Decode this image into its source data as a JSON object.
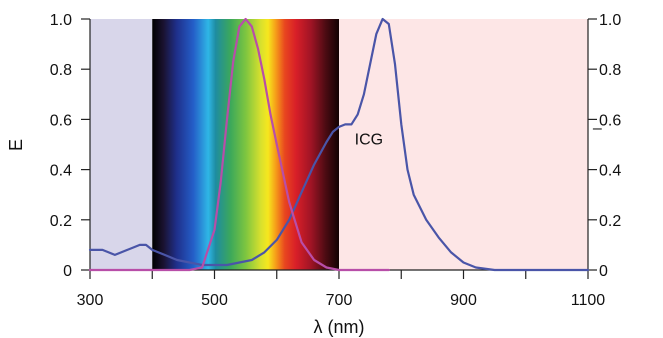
{
  "chart_data": {
    "type": "line",
    "xlabel": "λ (nm)",
    "ylabel": "E",
    "xlim": [
      300,
      1100
    ],
    "ylim": [
      0,
      1.0
    ],
    "y2lim": [
      0,
      1.0
    ],
    "x_ticks": [
      300,
      400,
      500,
      600,
      700,
      800,
      900,
      1000,
      1100
    ],
    "x_tick_labels": [
      "300",
      "",
      "500",
      "",
      "700",
      "",
      "900",
      "",
      "1100"
    ],
    "y_ticks": [
      0,
      0.2,
      0.4,
      0.6,
      0.8,
      1.0
    ],
    "y_tick_labels": [
      "0",
      "0.2",
      "0.4",
      "0.6",
      "0.8",
      "1.0"
    ],
    "y2_ticks": [
      0,
      0.2,
      0.4,
      0.6,
      0.8,
      1.0
    ],
    "y2_tick_labels": [
      "0",
      "0.2",
      "0.4",
      "0.6",
      "0.8",
      "1.0"
    ],
    "regions": [
      {
        "x": [
          300,
          400
        ],
        "color": "#d8d6ea"
      },
      {
        "x": [
          400,
          700
        ],
        "kind": "visible-spectrum"
      },
      {
        "x": [
          700,
          1100
        ],
        "color": "#fde6e6"
      }
    ],
    "series": [
      {
        "name": "ICG",
        "color": "#4a55a8",
        "x": [
          300,
          320,
          330,
          340,
          350,
          360,
          370,
          380,
          390,
          400,
          420,
          440,
          460,
          480,
          500,
          520,
          540,
          560,
          580,
          600,
          620,
          640,
          660,
          680,
          690,
          700,
          710,
          720,
          730,
          740,
          750,
          760,
          770,
          780,
          790,
          800,
          810,
          820,
          840,
          860,
          880,
          900,
          920,
          950,
          1000,
          1100
        ],
        "y": [
          0.08,
          0.08,
          0.07,
          0.06,
          0.07,
          0.08,
          0.09,
          0.1,
          0.1,
          0.08,
          0.06,
          0.04,
          0.03,
          0.02,
          0.02,
          0.02,
          0.03,
          0.04,
          0.07,
          0.12,
          0.2,
          0.31,
          0.42,
          0.51,
          0.55,
          0.57,
          0.58,
          0.58,
          0.62,
          0.7,
          0.82,
          0.94,
          1.0,
          0.98,
          0.82,
          0.58,
          0.4,
          0.3,
          0.2,
          0.13,
          0.07,
          0.03,
          0.01,
          0.0,
          0.0,
          0.0
        ]
      },
      {
        "color": "#b84ea8",
        "x": [
          300,
          460,
          480,
          500,
          510,
          520,
          530,
          540,
          550,
          560,
          570,
          580,
          590,
          600,
          620,
          640,
          660,
          680,
          700,
          780
        ],
        "y": [
          0.0,
          0.0,
          0.01,
          0.16,
          0.35,
          0.6,
          0.83,
          0.97,
          1.0,
          0.97,
          0.88,
          0.76,
          0.62,
          0.5,
          0.27,
          0.11,
          0.04,
          0.01,
          0.0,
          0.0
        ]
      }
    ],
    "annotations": [
      {
        "text": "ICG",
        "x": 748,
        "y": 0.5
      },
      {
        "text": "–",
        "x": 1115,
        "y": 0.57
      }
    ],
    "grid": false
  }
}
